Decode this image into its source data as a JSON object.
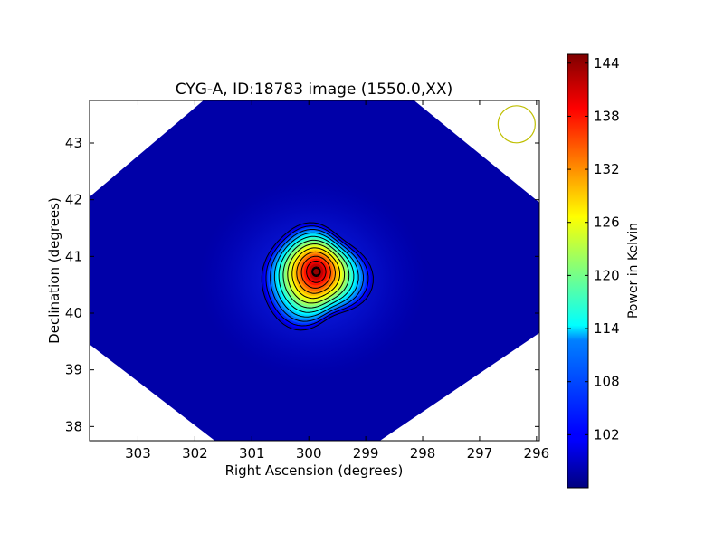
{
  "chart_data": {
    "type": "heatmap",
    "title": "CYG-A, ID:18783 image (1550.0,XX)",
    "xlabel": "Right Ascension (degrees)",
    "ylabel": "Declination (degrees)",
    "xlim": [
      303.85,
      295.95
    ],
    "ylim": [
      37.75,
      43.75
    ],
    "x_ticks": [
      303,
      302,
      301,
      300,
      299,
      298,
      297,
      296
    ],
    "y_ticks": [
      38,
      39,
      40,
      41,
      42,
      43
    ],
    "colorbar": {
      "label": "Power in Kelvin",
      "range": [
        96,
        145
      ],
      "ticks": [
        102,
        108,
        114,
        120,
        126,
        132,
        138,
        144
      ],
      "colormap": "jet"
    },
    "source": {
      "ra": 299.87,
      "dec": 40.73,
      "peak": 145
    },
    "beam_marker": {
      "ra": 296.35,
      "dec": 43.33,
      "color": "#bfbf00"
    },
    "contour_levels": [
      100,
      104,
      108,
      112,
      116,
      120,
      124,
      128,
      132,
      136,
      140,
      144
    ],
    "footprint_corners": [
      {
        "ra": 301.85,
        "dec": 43.75
      },
      {
        "ra": 298.15,
        "dec": 43.75
      },
      {
        "ra": 295.95,
        "dec": 41.95
      },
      {
        "ra": 295.95,
        "dec": 39.65
      },
      {
        "ra": 298.75,
        "dec": 37.75
      },
      {
        "ra": 301.65,
        "dec": 37.75
      },
      {
        "ra": 303.85,
        "dec": 39.45
      },
      {
        "ra": 303.85,
        "dec": 42.05
      }
    ]
  }
}
